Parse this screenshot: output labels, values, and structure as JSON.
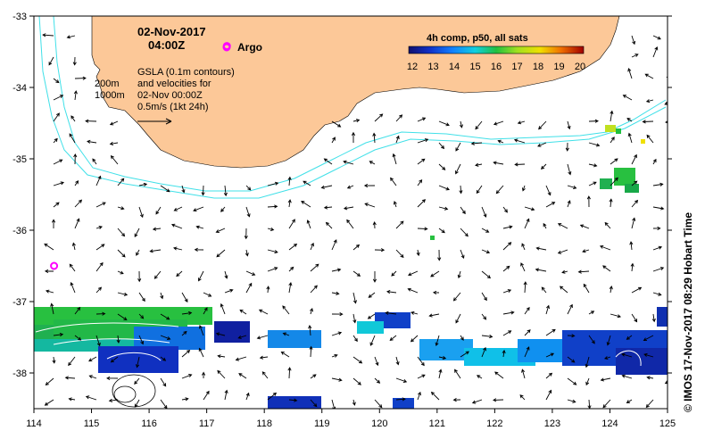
{
  "header": {
    "date": "02-Nov-2017",
    "time": "04:00Z",
    "argo_label": "Argo"
  },
  "depth_labels": [
    "200m",
    "1000m"
  ],
  "info_lines": [
    "GSLA (0.1m contours)",
    "and velocities for",
    "02-Nov 00:00Z",
    "0.5m/s (1kt 24h)"
  ],
  "colorbar": {
    "title": "4h comp, p50, all sats",
    "ticks": [
      "12",
      "13",
      "14",
      "15",
      "16",
      "17",
      "18",
      "19",
      "20"
    ],
    "min": 12,
    "max": 20
  },
  "axes": {
    "lon_ticks": [
      "114",
      "115",
      "116",
      "117",
      "118",
      "119",
      "120",
      "121",
      "122",
      "123",
      "124",
      "125"
    ],
    "lat_ticks": [
      "-33",
      "-34",
      "-35",
      "-36",
      "-37",
      "-38"
    ],
    "lon_range": [
      114,
      125
    ],
    "lat_range": [
      -38.5,
      -33
    ]
  },
  "credit": "© IMOS 17-Nov-2017 08:29 Hobart Time",
  "argo_floats": [
    {
      "lon": 117.35,
      "lat": -33.42
    },
    {
      "lon": 114.35,
      "lat": -36.5
    }
  ],
  "colors": {
    "land": "#fcc898",
    "shelf": "#40e0e8",
    "argo": "#ff00ff",
    "frame": "#000000"
  }
}
